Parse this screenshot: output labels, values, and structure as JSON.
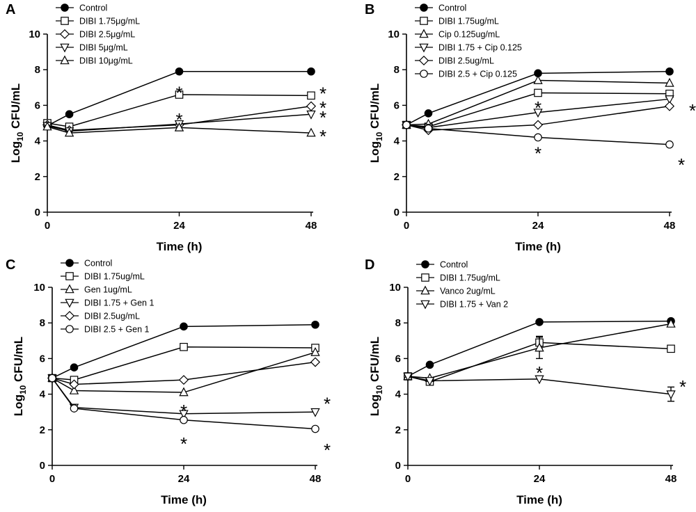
{
  "figure": {
    "colors": {
      "ink": "#000000",
      "background": "#ffffff"
    }
  },
  "chart_data": [
    {
      "panel": "A",
      "type": "line",
      "xlabel": "Time (h)",
      "ylabel_main": "Log",
      "ylabel_sub": "10",
      "ylabel_rest": " CFU/mL",
      "x_ticks": [
        0,
        24,
        48
      ],
      "y_ticks": [
        0,
        2,
        4,
        6,
        8,
        10
      ],
      "xlim": [
        0,
        48
      ],
      "ylim": [
        0,
        10
      ],
      "series": [
        {
          "name": "Control",
          "marker": "circle-filled",
          "x": [
            0,
            4,
            24,
            48
          ],
          "y": [
            4.85,
            5.5,
            7.9,
            7.9
          ]
        },
        {
          "name": "DIBI 1.75μg/mL",
          "marker": "square-open",
          "x": [
            0,
            4,
            24,
            48
          ],
          "y": [
            5.0,
            4.8,
            6.6,
            6.55
          ]
        },
        {
          "name": "DIBI 2.5μg/mL",
          "marker": "diamond-open",
          "x": [
            0,
            4,
            24,
            48
          ],
          "y": [
            4.9,
            4.6,
            4.9,
            5.95
          ]
        },
        {
          "name": "DIBI 5μg/mL",
          "marker": "triangle-down-open",
          "x": [
            0,
            4,
            24,
            48
          ],
          "y": [
            4.85,
            4.55,
            4.95,
            5.5
          ]
        },
        {
          "name": "DIBI 10μg/mL",
          "marker": "triangle-up-open",
          "x": [
            0,
            4,
            24,
            48
          ],
          "y": [
            4.8,
            4.45,
            4.75,
            4.45
          ]
        }
      ],
      "annotations": [
        {
          "text": "*",
          "x": 24,
          "y": 6.9
        },
        {
          "text": "*",
          "x": 24,
          "y": 5.4
        },
        {
          "text": "*",
          "x": 48,
          "y": 6.85
        },
        {
          "text": "*",
          "x": 48,
          "y": 6.05
        },
        {
          "text": "*",
          "x": 48,
          "y": 5.5
        },
        {
          "text": "*",
          "x": 48,
          "y": 4.45
        }
      ]
    },
    {
      "panel": "B",
      "type": "line",
      "xlabel": "Time (h)",
      "ylabel_main": "Log",
      "ylabel_sub": "10",
      "ylabel_rest": " CFU/mL",
      "x_ticks": [
        0,
        24,
        48
      ],
      "y_ticks": [
        0,
        2,
        4,
        6,
        8,
        10
      ],
      "xlim": [
        0,
        48
      ],
      "ylim": [
        0,
        10
      ],
      "series": [
        {
          "name": "Control",
          "marker": "circle-filled",
          "x": [
            0,
            4,
            24,
            48
          ],
          "y": [
            4.9,
            5.55,
            7.8,
            7.9
          ]
        },
        {
          "name": "DIBI 1.75ug/mL",
          "marker": "square-open",
          "x": [
            0,
            4,
            24,
            48
          ],
          "y": [
            4.9,
            4.8,
            6.7,
            6.65
          ]
        },
        {
          "name": "Cip 0.125ug/mL",
          "marker": "triangle-up-open",
          "x": [
            0,
            4,
            24,
            48
          ],
          "y": [
            4.9,
            4.95,
            7.4,
            7.25
          ]
        },
        {
          "name": "DIBI 1.75 + Cip 0.125",
          "marker": "triangle-down-open",
          "x": [
            0,
            4,
            24,
            48
          ],
          "y": [
            4.9,
            4.75,
            5.6,
            6.35
          ]
        },
        {
          "name": "DIBI 2.5ug/mL",
          "marker": "diamond-open",
          "x": [
            0,
            4,
            24,
            48
          ],
          "y": [
            4.9,
            4.6,
            4.9,
            5.95
          ]
        },
        {
          "name": "DIBI 2.5 + Cip 0.125",
          "marker": "circle-open",
          "x": [
            0,
            4,
            24,
            48
          ],
          "y": [
            4.9,
            4.7,
            4.2,
            3.8
          ]
        }
      ],
      "annotations": [
        {
          "text": "*",
          "x": 24,
          "y": 6.05
        },
        {
          "text": "*",
          "x": 24,
          "y": 3.5
        },
        {
          "text": "*",
          "x": 48,
          "y": 5.9,
          "dx": 16
        },
        {
          "text": "*",
          "x": 48,
          "y": 2.85
        }
      ]
    },
    {
      "panel": "C",
      "type": "line",
      "xlabel": "Time (h)",
      "ylabel_main": "Log",
      "ylabel_sub": "10",
      "ylabel_rest": " CFU/mL",
      "x_ticks": [
        0,
        24,
        48
      ],
      "y_ticks": [
        0,
        2,
        4,
        6,
        8,
        10
      ],
      "xlim": [
        0,
        48
      ],
      "ylim": [
        0,
        10
      ],
      "series": [
        {
          "name": "Control",
          "marker": "circle-filled",
          "x": [
            0,
            4,
            24,
            48
          ],
          "y": [
            4.9,
            5.5,
            7.8,
            7.9
          ]
        },
        {
          "name": "DIBI 1.75ug/mL",
          "marker": "square-open",
          "x": [
            0,
            4,
            24,
            48
          ],
          "y": [
            4.9,
            4.8,
            6.65,
            6.6
          ]
        },
        {
          "name": "Gen 1ug/mL",
          "marker": "triangle-up-open",
          "x": [
            0,
            4,
            24,
            48
          ],
          "y": [
            4.9,
            4.2,
            4.1,
            6.35
          ]
        },
        {
          "name": "DIBI 1.75 + Gen 1",
          "marker": "triangle-down-open",
          "x": [
            0,
            4,
            24,
            48
          ],
          "y": [
            4.9,
            3.25,
            2.9,
            3.0
          ]
        },
        {
          "name": "DIBI 2.5ug/mL",
          "marker": "diamond-open",
          "x": [
            0,
            4,
            24,
            48
          ],
          "y": [
            4.9,
            4.55,
            4.8,
            5.8
          ]
        },
        {
          "name": "DIBI 2.5 + Gen 1",
          "marker": "circle-open",
          "x": [
            0,
            4,
            24,
            48
          ],
          "y": [
            4.9,
            3.2,
            2.55,
            2.05
          ]
        }
      ],
      "annotations": [
        {
          "text": "*",
          "x": 24,
          "y": 3.25
        },
        {
          "text": "*",
          "x": 24,
          "y": 1.4
        },
        {
          "text": "*",
          "x": 48,
          "y": 3.65
        },
        {
          "text": "*",
          "x": 48,
          "y": 1.05
        }
      ]
    },
    {
      "panel": "D",
      "type": "line",
      "xlabel": "Time (h)",
      "ylabel_main": "Log",
      "ylabel_sub": "10",
      "ylabel_rest": " CFU/mL",
      "x_ticks": [
        0,
        24,
        48
      ],
      "y_ticks": [
        0,
        2,
        4,
        6,
        8,
        10
      ],
      "xlim": [
        0,
        48
      ],
      "ylim": [
        0,
        10
      ],
      "series": [
        {
          "name": "Control",
          "marker": "circle-filled",
          "x": [
            0,
            4,
            24,
            48
          ],
          "y": [
            5.0,
            5.65,
            8.05,
            8.1
          ]
        },
        {
          "name": "DIBI 1.75ug/mL",
          "marker": "square-open",
          "x": [
            0,
            4,
            24,
            48
          ],
          "y": [
            5.0,
            4.7,
            6.9,
            6.55
          ],
          "err": [
            0,
            0,
            0.35,
            0
          ]
        },
        {
          "name": "Vanco 2ug/mL",
          "marker": "triangle-up-open",
          "x": [
            0,
            4,
            24,
            48
          ],
          "y": [
            5.0,
            4.9,
            6.6,
            7.95
          ],
          "err": [
            0,
            0,
            0.6,
            0
          ]
        },
        {
          "name": "DIBI 1.75 + Van 2",
          "marker": "triangle-down-open",
          "x": [
            0,
            4,
            24,
            48
          ],
          "y": [
            5.0,
            4.75,
            4.85,
            4.0
          ],
          "err": [
            0,
            0,
            0,
            0.4
          ]
        }
      ],
      "annotations": [
        {
          "text": "*",
          "x": 24,
          "y": 5.4
        },
        {
          "text": "*",
          "x": 48,
          "y": 4.6
        }
      ]
    }
  ]
}
